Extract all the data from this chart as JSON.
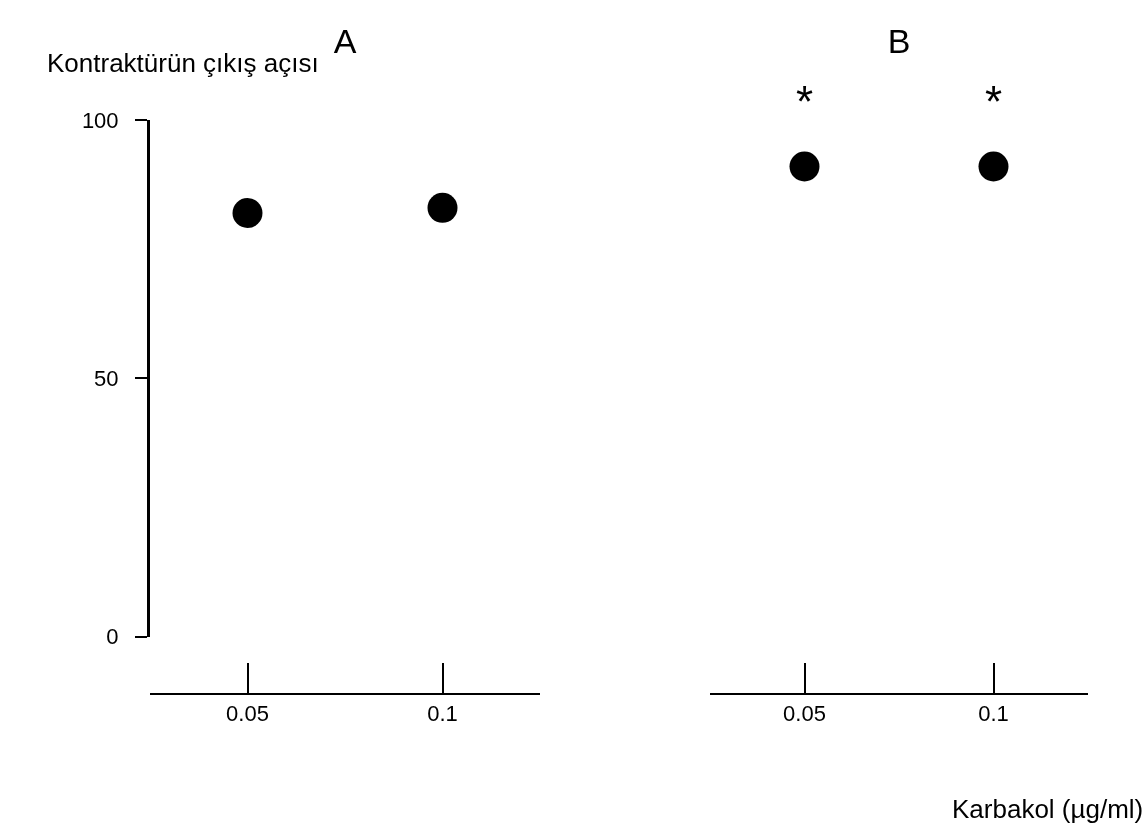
{
  "chart_data": [
    {
      "type": "scatter",
      "title": "A",
      "ylabel": "Kontraktürün çıkış açısı",
      "categories": [
        "0.05",
        "0.1"
      ],
      "values": [
        82,
        83
      ],
      "color": "#000000",
      "marker": "circle",
      "ylim": [
        0,
        100
      ],
      "yticks": [
        0,
        50,
        100
      ],
      "grid": false
    },
    {
      "type": "scatter",
      "title": "B",
      "xlabel": "Karbakol (µg/ml)",
      "categories": [
        "0.05",
        "0.1"
      ],
      "values": [
        91,
        91
      ],
      "color": "#000000",
      "marker": "circle",
      "ylim": [
        0,
        100
      ],
      "yticks": [
        0,
        50,
        100
      ],
      "grid": false,
      "tick_labels": "x",
      "annotations": [
        {
          "text": "*",
          "x": "0.05",
          "y": 91
        },
        {
          "text": "*",
          "x": "0.1",
          "y": 91
        }
      ]
    }
  ]
}
